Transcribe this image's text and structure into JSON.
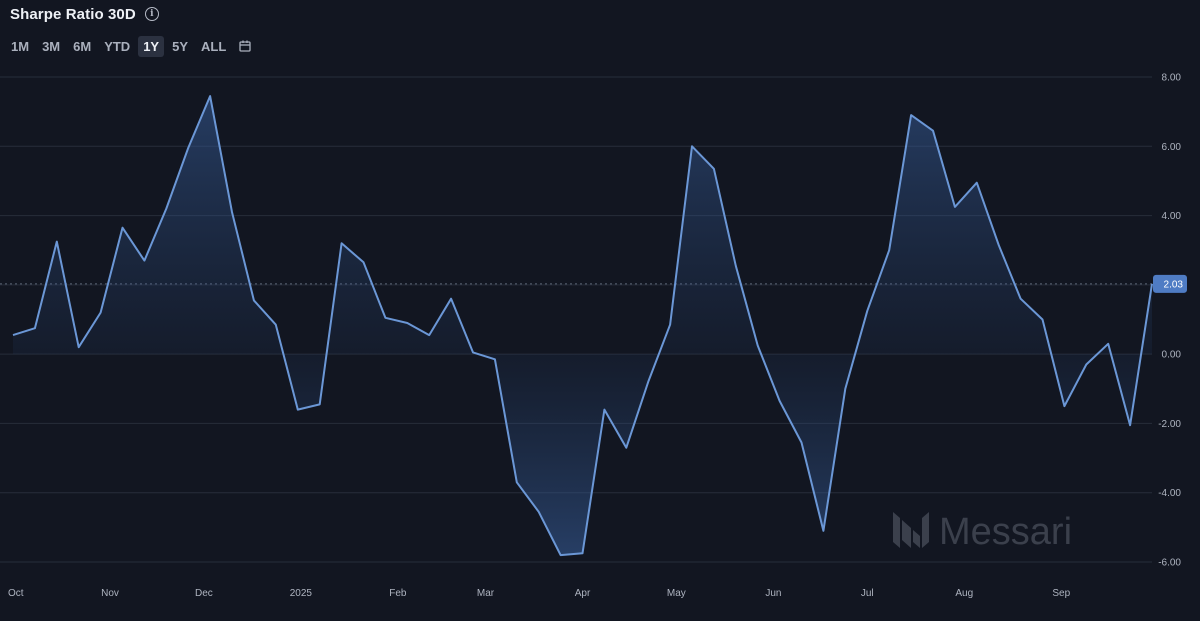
{
  "header": {
    "title": "Sharpe Ratio 30D",
    "info_icon": "info-icon"
  },
  "range_buttons": [
    "1M",
    "3M",
    "6M",
    "YTD",
    "1Y",
    "5Y",
    "ALL"
  ],
  "active_range": "1Y",
  "calendar_icon": "calendar-icon",
  "watermark": "Messari",
  "colors": {
    "background": "#121621",
    "line": "#6b97d6",
    "fill": "#2b4a78",
    "grid": "#2a3140",
    "badge": "#4f7cc4"
  },
  "chart_data": {
    "type": "area",
    "title": "Sharpe Ratio 30D",
    "xlabel": "",
    "ylabel": "",
    "x_ticks": [
      "Oct",
      "Nov",
      "Dec",
      "2025",
      "Feb",
      "Mar",
      "Apr",
      "May",
      "Jun",
      "Jul",
      "Aug",
      "Sep"
    ],
    "y_ticks": [
      "8.00",
      "6.00",
      "4.00",
      "2.00",
      "0.00",
      "-2.00",
      "-4.00",
      "-6.00"
    ],
    "ylim": [
      -6,
      8
    ],
    "grid": true,
    "current_value_label": "2.03",
    "series": [
      {
        "x": [
          "2024-10-01",
          "2024-10-08",
          "2024-10-15",
          "2024-10-22",
          "2024-10-29",
          "2024-11-05",
          "2024-11-12",
          "2024-11-19",
          "2024-11-26",
          "2024-12-03",
          "2024-12-10",
          "2024-12-17",
          "2024-12-24",
          "2024-12-31",
          "2025-01-07",
          "2025-01-14",
          "2025-01-21",
          "2025-01-28",
          "2025-02-04",
          "2025-02-11",
          "2025-02-18",
          "2025-02-25",
          "2025-03-04",
          "2025-03-11",
          "2025-03-18",
          "2025-03-25",
          "2025-04-01",
          "2025-04-08",
          "2025-04-15",
          "2025-04-22",
          "2025-04-29",
          "2025-05-06",
          "2025-05-13",
          "2025-05-20",
          "2025-05-27",
          "2025-06-03",
          "2025-06-10",
          "2025-06-17",
          "2025-06-24",
          "2025-07-01",
          "2025-07-08",
          "2025-07-15",
          "2025-07-22",
          "2025-07-29",
          "2025-08-05",
          "2025-08-12",
          "2025-08-19",
          "2025-08-26",
          "2025-09-02",
          "2025-09-09",
          "2025-09-16",
          "2025-09-23",
          "2025-09-30"
        ],
        "values": [
          0.55,
          0.75,
          3.25,
          0.2,
          1.2,
          3.65,
          2.7,
          4.2,
          5.95,
          7.45,
          4.1,
          1.55,
          0.85,
          -1.6,
          -1.45,
          3.2,
          2.65,
          1.05,
          0.9,
          0.55,
          1.6,
          0.05,
          -0.15,
          -3.7,
          -4.55,
          -5.8,
          -5.75,
          -1.6,
          -2.7,
          -0.8,
          0.85,
          6.0,
          5.35,
          2.55,
          0.25,
          -1.35,
          -2.55,
          -5.1,
          -1.0,
          1.25,
          3.0,
          6.9,
          6.45,
          4.25,
          4.95,
          3.15,
          1.6,
          1.0,
          -1.5,
          -0.3,
          0.3,
          -2.05,
          2.03
        ]
      }
    ]
  }
}
